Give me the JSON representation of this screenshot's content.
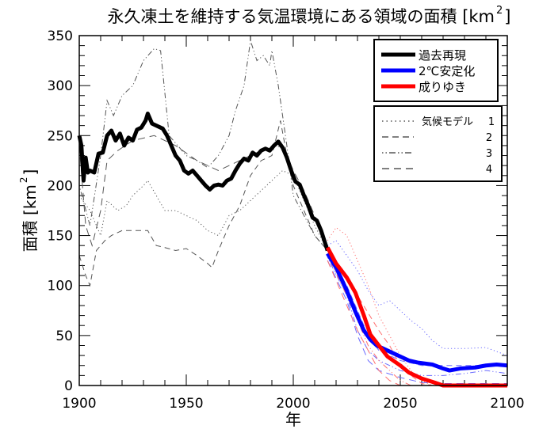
{
  "chart_data": {
    "type": "line",
    "title": "永久凍土を維持する気温環境にある領域の面積 [km²]",
    "title_text": "永久凍土を維持する気温環境にある領域の面積 [km",
    "title_sup": "2",
    "title_close": "]",
    "xlabel": "年",
    "ylabel": "面積 [km",
    "ylabel_sup": "2",
    "ylabel_close": "]",
    "xlim": [
      1900,
      2100
    ],
    "ylim": [
      0,
      350
    ],
    "xticks": [
      1900,
      1950,
      2000,
      2050,
      2100
    ],
    "yticks": [
      0,
      50,
      100,
      150,
      200,
      250,
      300,
      350
    ],
    "grid": false,
    "legend_position": "top-right",
    "series": [
      {
        "name": "過去再現",
        "color": "#000000",
        "style": "solid",
        "x": [
          1900,
          1901,
          1902,
          1903,
          1904,
          1905,
          1907,
          1909,
          1911,
          1913,
          1915,
          1917,
          1919,
          1921,
          1923,
          1925,
          1927,
          1929,
          1931,
          1932,
          1934,
          1938,
          1939,
          1941,
          1943,
          1945,
          1947,
          1949,
          1951,
          1953,
          1955,
          1957,
          1959,
          1961,
          1963,
          1965,
          1967,
          1969,
          1971,
          1973,
          1975,
          1977,
          1979,
          1981,
          1983,
          1985,
          1987,
          1989,
          1991,
          1993,
          1995,
          1997,
          1999,
          2001,
          2003,
          2005,
          2007,
          2009,
          2011,
          2013,
          2016
        ],
        "y": [
          250,
          240,
          205,
          228,
          213,
          215,
          213,
          232,
          233,
          250,
          255,
          245,
          252,
          240,
          248,
          245,
          256,
          258,
          265,
          272,
          262,
          258,
          257,
          250,
          240,
          230,
          225,
          215,
          212,
          215,
          210,
          205,
          200,
          196,
          200,
          201,
          200,
          205,
          207,
          215,
          222,
          227,
          225,
          233,
          230,
          235,
          237,
          235,
          240,
          244,
          238,
          228,
          215,
          204,
          201,
          190,
          180,
          168,
          165,
          155,
          135
        ]
      },
      {
        "name": "2℃安定化",
        "color": "#0000ff",
        "style": "solid",
        "x": [
          2016,
          2020,
          2025,
          2029,
          2033,
          2036,
          2039,
          2044,
          2050,
          2054,
          2058,
          2065,
          2070,
          2073,
          2078,
          2085,
          2090,
          2095,
          2100
        ],
        "y": [
          132,
          118,
          95,
          74,
          55,
          46,
          40,
          35,
          29,
          25,
          23,
          21,
          17,
          15,
          17,
          18,
          20,
          21,
          20
        ]
      },
      {
        "name": "成りゆき",
        "color": "#ff0000",
        "style": "solid",
        "x": [
          2016,
          2020,
          2025,
          2029,
          2033,
          2036,
          2040,
          2044,
          2050,
          2054,
          2060,
          2066,
          2070,
          2100
        ],
        "y": [
          138,
          122,
          108,
          93,
          70,
          51,
          40,
          29,
          20,
          13,
          7,
          3,
          0,
          0
        ]
      }
    ],
    "model_legend": {
      "label": "気候モデル",
      "items": [
        "1",
        "2",
        "3",
        "4"
      ]
    },
    "models_historical": [
      {
        "model": "1",
        "style": "dotted",
        "x": [
          1900,
          1905,
          1910,
          1913,
          1918,
          1922,
          1925,
          1930,
          1932,
          1936,
          1940,
          1945,
          1950,
          1955,
          1960,
          1965,
          1970,
          1975,
          1980,
          1985,
          1990,
          1995,
          2000,
          2005,
          2010,
          2016
        ],
        "y": [
          190,
          175,
          150,
          185,
          175,
          180,
          190,
          200,
          205,
          190,
          175,
          175,
          170,
          165,
          155,
          150,
          170,
          175,
          185,
          195,
          205,
          215,
          210,
          185,
          160,
          135
        ]
      },
      {
        "model": "2",
        "style": "dashed",
        "x": [
          1900,
          1903,
          1905,
          1908,
          1912,
          1915,
          1920,
          1925,
          1932,
          1936,
          1940,
          1945,
          1950,
          1955,
          1960,
          1962,
          1965,
          1970,
          1975,
          1980,
          1985,
          1990,
          1994,
          1997,
          2000,
          2005,
          2010,
          2016
        ],
        "y": [
          130,
          110,
          100,
          135,
          145,
          150,
          155,
          155,
          155,
          140,
          138,
          135,
          137,
          130,
          122,
          118,
          135,
          160,
          180,
          210,
          225,
          230,
          265,
          230,
          200,
          175,
          150,
          135
        ]
      },
      {
        "model": "3",
        "style": "dashdotdot",
        "x": [
          1900,
          1905,
          1910,
          1913,
          1916,
          1920,
          1925,
          1930,
          1935,
          1938,
          1942,
          1946,
          1950,
          1955,
          1960,
          1965,
          1970,
          1973,
          1977,
          1980,
          1983,
          1986,
          1989,
          1990,
          1993,
          1997,
          2000,
          2005,
          2010,
          2016
        ],
        "y": [
          200,
          160,
          230,
          285,
          270,
          290,
          300,
          325,
          337,
          335,
          250,
          240,
          230,
          225,
          218,
          230,
          250,
          275,
          300,
          345,
          325,
          330,
          320,
          335,
          300,
          240,
          190,
          170,
          150,
          135
        ]
      },
      {
        "model": "4",
        "style": "longdash",
        "x": [
          1900,
          1903,
          1906,
          1910,
          1913,
          1918,
          1925,
          1935,
          1945,
          1955,
          1965,
          1975,
          1985,
          1995,
          2000,
          2005,
          2010,
          2016
        ],
        "y": [
          240,
          160,
          140,
          175,
          225,
          235,
          245,
          250,
          240,
          225,
          215,
          225,
          235,
          240,
          215,
          195,
          170,
          135
        ]
      }
    ],
    "models_2C": [
      {
        "model": "1",
        "x": [
          2016,
          2020,
          2025,
          2030,
          2035,
          2040,
          2045,
          2050,
          2055,
          2060,
          2065,
          2070,
          2080,
          2090,
          2100
        ],
        "y": [
          140,
          145,
          130,
          115,
          95,
          80,
          85,
          75,
          65,
          57,
          45,
          37,
          37,
          38,
          30
        ]
      },
      {
        "model": "2",
        "x": [
          2016,
          2025,
          2030,
          2035,
          2040,
          2050,
          2060,
          2070,
          2080,
          2090,
          2100
        ],
        "y": [
          132,
          100,
          75,
          50,
          35,
          25,
          20,
          20,
          20,
          20,
          20
        ]
      },
      {
        "model": "3",
        "x": [
          2016,
          2025,
          2030,
          2035,
          2040,
          2050,
          2060,
          2070,
          2080,
          2090,
          2100
        ],
        "y": [
          128,
          90,
          55,
          35,
          25,
          15,
          10,
          10,
          12,
          15,
          12
        ]
      },
      {
        "model": "4",
        "x": [
          2016,
          2025,
          2030,
          2035,
          2040,
          2050,
          2060,
          2070,
          2100
        ],
        "y": [
          125,
          85,
          50,
          25,
          15,
          8,
          3,
          2,
          2
        ]
      }
    ],
    "models_BAU": [
      {
        "model": "1",
        "x": [
          2016,
          2020,
          2025,
          2030,
          2035,
          2040,
          2045,
          2050,
          2055,
          2060,
          2065
        ],
        "y": [
          145,
          158,
          150,
          125,
          100,
          70,
          50,
          30,
          15,
          5,
          0
        ]
      },
      {
        "model": "2",
        "x": [
          2016,
          2025,
          2030,
          2040,
          2045,
          2050,
          2055,
          2060,
          2065
        ],
        "y": [
          135,
          110,
          90,
          55,
          40,
          20,
          10,
          2,
          0
        ]
      },
      {
        "model": "3",
        "x": [
          2016,
          2025,
          2030,
          2035,
          2040,
          2045,
          2050,
          2055
        ],
        "y": [
          130,
          90,
          65,
          40,
          25,
          15,
          5,
          0
        ]
      },
      {
        "model": "4",
        "x": [
          2016,
          2025,
          2030,
          2035,
          2040,
          2045,
          2050
        ],
        "y": [
          125,
          80,
          55,
          35,
          15,
          5,
          0
        ]
      }
    ]
  }
}
